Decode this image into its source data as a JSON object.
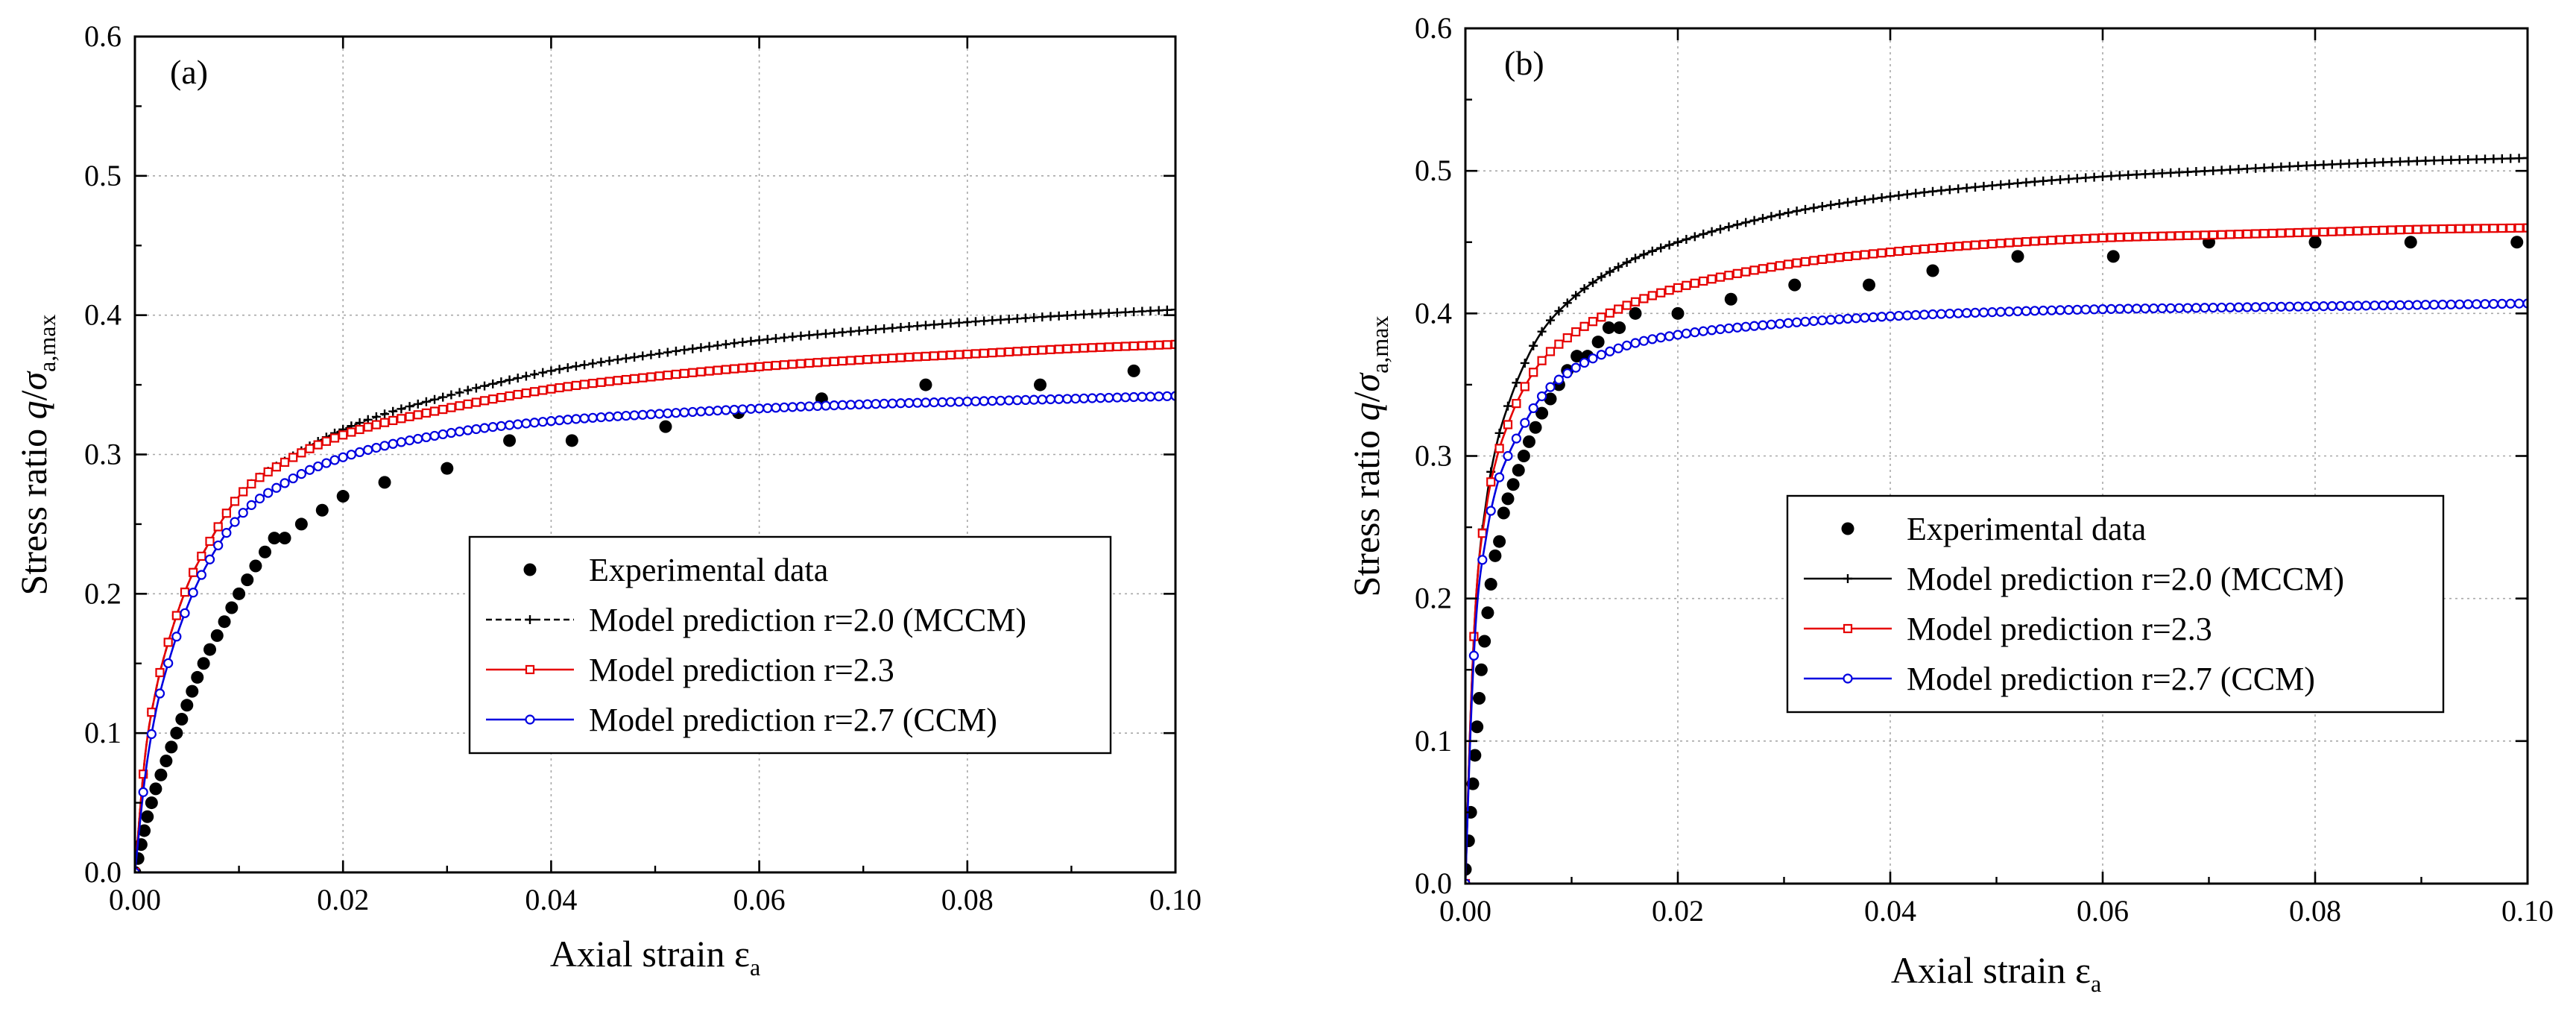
{
  "chart_data": [
    {
      "type": "line",
      "panel_label": "(a)",
      "xlabel_main": "Axial strain ε",
      "xlabel_sub": "a",
      "ylabel_main": "Stress ratio ",
      "ylabel_q": "q",
      "ylabel_slash": "/",
      "ylabel_sigma": "σ",
      "ylabel_sub": "a,max",
      "xlim": [
        0,
        0.1
      ],
      "ylim": [
        0,
        0.6
      ],
      "xticks": [
        "0.00",
        "0.02",
        "0.04",
        "0.06",
        "0.08",
        "0.10"
      ],
      "yticks": [
        "0.0",
        "0.1",
        "0.2",
        "0.3",
        "0.4",
        "0.5",
        "0.6"
      ],
      "grid": true,
      "legend_position": "center-right",
      "series": [
        {
          "name": "Experimental data",
          "kind": "scatter",
          "color": "#000000",
          "x": [
            0.0,
            0.0003,
            0.0006,
            0.0009,
            0.0012,
            0.0016,
            0.002,
            0.0025,
            0.003,
            0.0035,
            0.004,
            0.0045,
            0.005,
            0.0055,
            0.006,
            0.0066,
            0.0072,
            0.0079,
            0.0086,
            0.0093,
            0.01,
            0.0108,
            0.0116,
            0.0125,
            0.0134,
            0.0144,
            0.016,
            0.018,
            0.02,
            0.024,
            0.03,
            0.036,
            0.042,
            0.051,
            0.058,
            0.066,
            0.076,
            0.087,
            0.096
          ],
          "y": [
            0.0,
            0.01,
            0.02,
            0.03,
            0.04,
            0.05,
            0.06,
            0.07,
            0.08,
            0.09,
            0.1,
            0.11,
            0.12,
            0.13,
            0.14,
            0.15,
            0.16,
            0.17,
            0.18,
            0.19,
            0.2,
            0.21,
            0.22,
            0.23,
            0.24,
            0.24,
            0.25,
            0.26,
            0.27,
            0.28,
            0.29,
            0.31,
            0.31,
            0.32,
            0.33,
            0.34,
            0.35,
            0.35,
            0.36
          ]
        },
        {
          "name": "Model prediction r=2.0 (MCCM)",
          "kind": "model",
          "marker": "plus",
          "dashed": true,
          "color": "#000000",
          "x": [
            0,
            0.001,
            0.002,
            0.003,
            0.005,
            0.007,
            0.01,
            0.015,
            0.02,
            0.03,
            0.04,
            0.05,
            0.06,
            0.07,
            0.08,
            0.09,
            0.1
          ],
          "y": [
            0,
            0.085,
            0.13,
            0.16,
            0.205,
            0.235,
            0.27,
            0.298,
            0.318,
            0.342,
            0.36,
            0.372,
            0.382,
            0.389,
            0.395,
            0.4,
            0.404
          ]
        },
        {
          "name": "Model prediction r=2.3",
          "kind": "model",
          "marker": "square",
          "dashed": false,
          "color": "#e60000",
          "x": [
            0,
            0.001,
            0.002,
            0.003,
            0.005,
            0.007,
            0.01,
            0.015,
            0.02,
            0.03,
            0.04,
            0.05,
            0.06,
            0.07,
            0.08,
            0.09,
            0.1
          ],
          "y": [
            0,
            0.085,
            0.13,
            0.16,
            0.205,
            0.235,
            0.27,
            0.297,
            0.314,
            0.333,
            0.347,
            0.356,
            0.363,
            0.368,
            0.372,
            0.376,
            0.379
          ]
        },
        {
          "name": "Model prediction r=2.7 (CCM)",
          "kind": "model",
          "marker": "circle",
          "dashed": false,
          "color": "#0000e0",
          "x": [
            0,
            0.001,
            0.002,
            0.003,
            0.005,
            0.007,
            0.01,
            0.015,
            0.02,
            0.03,
            0.04,
            0.05,
            0.06,
            0.07,
            0.08,
            0.09,
            0.1
          ],
          "y": [
            0,
            0.07,
            0.115,
            0.145,
            0.19,
            0.222,
            0.255,
            0.282,
            0.298,
            0.315,
            0.324,
            0.329,
            0.333,
            0.336,
            0.338,
            0.34,
            0.342
          ]
        }
      ]
    },
    {
      "type": "line",
      "panel_label": "(b)",
      "xlabel_main": "Axial strain ε",
      "xlabel_sub": "a",
      "ylabel_main": "Stress ratio ",
      "ylabel_q": "q",
      "ylabel_slash": "/",
      "ylabel_sigma": "σ",
      "ylabel_sub": "a,max",
      "xlim": [
        0,
        0.1
      ],
      "ylim": [
        0,
        0.6
      ],
      "xticks": [
        "0.00",
        "0.02",
        "0.04",
        "0.06",
        "0.08",
        "0.10"
      ],
      "yticks": [
        "0.0",
        "0.1",
        "0.2",
        "0.3",
        "0.4",
        "0.5",
        "0.6"
      ],
      "grid": true,
      "legend_position": "center-right",
      "series": [
        {
          "name": "Experimental data",
          "kind": "scatter",
          "color": "#000000",
          "x": [
            0.0,
            0.0003,
            0.0005,
            0.0007,
            0.0009,
            0.0011,
            0.0013,
            0.0015,
            0.0018,
            0.0021,
            0.0024,
            0.0028,
            0.0032,
            0.0036,
            0.004,
            0.0045,
            0.005,
            0.0055,
            0.006,
            0.0066,
            0.0072,
            0.008,
            0.0088,
            0.0096,
            0.0105,
            0.0115,
            0.0125,
            0.0135,
            0.0145,
            0.016,
            0.02,
            0.025,
            0.031,
            0.038,
            0.044,
            0.052,
            0.061,
            0.07,
            0.08,
            0.089,
            0.099
          ],
          "y": [
            0.01,
            0.03,
            0.05,
            0.07,
            0.09,
            0.11,
            0.13,
            0.15,
            0.17,
            0.19,
            0.21,
            0.23,
            0.24,
            0.26,
            0.27,
            0.28,
            0.29,
            0.3,
            0.31,
            0.32,
            0.33,
            0.34,
            0.35,
            0.36,
            0.37,
            0.37,
            0.38,
            0.39,
            0.39,
            0.4,
            0.4,
            0.41,
            0.42,
            0.42,
            0.43,
            0.44,
            0.44,
            0.45,
            0.45,
            0.45,
            0.45
          ]
        },
        {
          "name": "Model prediction r=2.0 (MCCM)",
          "kind": "model",
          "marker": "plus",
          "dashed": false,
          "color": "#000000",
          "x": [
            0,
            0.0005,
            0.001,
            0.002,
            0.003,
            0.004,
            0.005,
            0.007,
            0.01,
            0.015,
            0.02,
            0.03,
            0.04,
            0.05,
            0.06,
            0.07,
            0.08,
            0.09,
            0.1
          ],
          "y": [
            0,
            0.12,
            0.2,
            0.27,
            0.31,
            0.335,
            0.355,
            0.385,
            0.41,
            0.435,
            0.45,
            0.47,
            0.482,
            0.49,
            0.496,
            0.5,
            0.504,
            0.507,
            0.509
          ]
        },
        {
          "name": "Model prediction r=2.3",
          "kind": "model",
          "marker": "square",
          "dashed": false,
          "color": "#e60000",
          "x": [
            0,
            0.0005,
            0.001,
            0.002,
            0.003,
            0.004,
            0.005,
            0.007,
            0.01,
            0.015,
            0.02,
            0.03,
            0.04,
            0.05,
            0.06,
            0.07,
            0.08,
            0.09,
            0.1
          ],
          "y": [
            0,
            0.12,
            0.2,
            0.265,
            0.3,
            0.322,
            0.34,
            0.365,
            0.385,
            0.405,
            0.418,
            0.434,
            0.443,
            0.449,
            0.453,
            0.455,
            0.457,
            0.459,
            0.46
          ]
        },
        {
          "name": "Model prediction r=2.7 (CCM)",
          "kind": "model",
          "marker": "circle",
          "dashed": false,
          "color": "#0000e0",
          "x": [
            0,
            0.0005,
            0.001,
            0.002,
            0.003,
            0.004,
            0.005,
            0.007,
            0.01,
            0.015,
            0.02,
            0.03,
            0.04,
            0.05,
            0.06,
            0.07,
            0.08,
            0.09,
            0.1
          ],
          "y": [
            0,
            0.11,
            0.185,
            0.245,
            0.28,
            0.3,
            0.315,
            0.34,
            0.36,
            0.377,
            0.385,
            0.393,
            0.398,
            0.401,
            0.403,
            0.404,
            0.405,
            0.406,
            0.407
          ]
        }
      ]
    }
  ]
}
